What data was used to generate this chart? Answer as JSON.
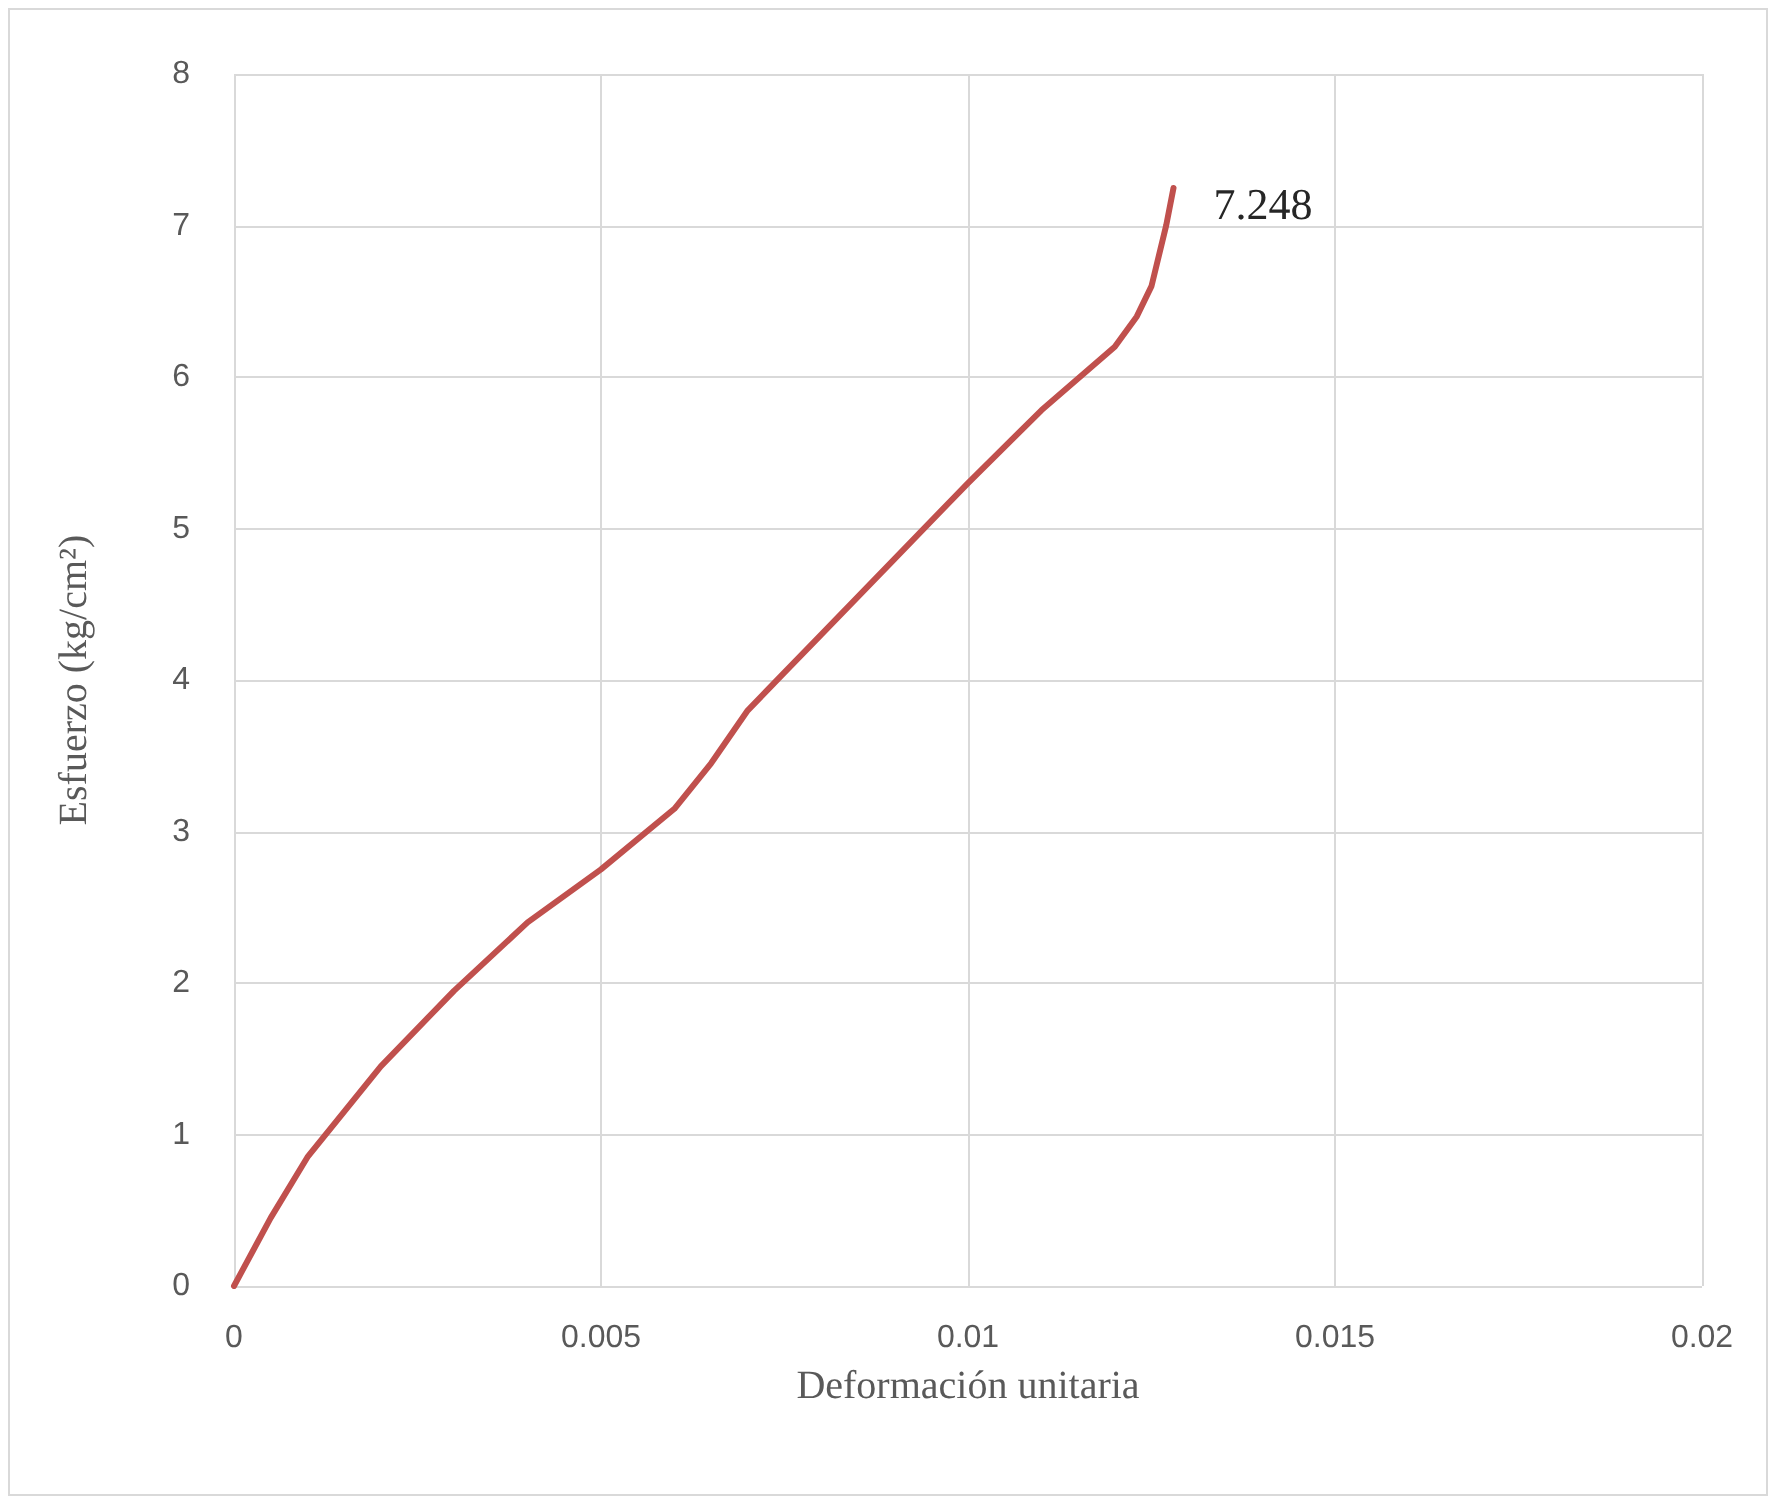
{
  "chart_data": {
    "type": "line",
    "xlabel": "Deformación unitaria",
    "ylabel": "Esfuerzo (kg/cm²)",
    "x": [
      0,
      0.0005,
      0.001,
      0.002,
      0.003,
      0.004,
      0.005,
      0.006,
      0.0065,
      0.007,
      0.0075,
      0.008,
      0.009,
      0.01,
      0.011,
      0.012,
      0.0123,
      0.0125,
      0.0127,
      0.0128
    ],
    "series": [
      {
        "color": "#c0504d",
        "values": [
          0,
          0.45,
          0.85,
          1.45,
          1.95,
          2.4,
          2.75,
          3.15,
          3.45,
          3.8,
          4.05,
          4.3,
          4.8,
          5.3,
          5.78,
          6.2,
          6.4,
          6.6,
          7.0,
          7.248
        ]
      }
    ],
    "xlim": [
      0,
      0.02
    ],
    "xticks": [
      0,
      0.005,
      0.01,
      0.015,
      0.02
    ],
    "ylim": [
      0,
      8
    ],
    "yticks": [
      0,
      1,
      2,
      3,
      4,
      5,
      6,
      7,
      8
    ],
    "annotations": [
      {
        "text": "7.248",
        "x": 0.0128,
        "y": 7.248
      }
    ],
    "grid": true,
    "marker": "none",
    "line_style": "solid"
  }
}
